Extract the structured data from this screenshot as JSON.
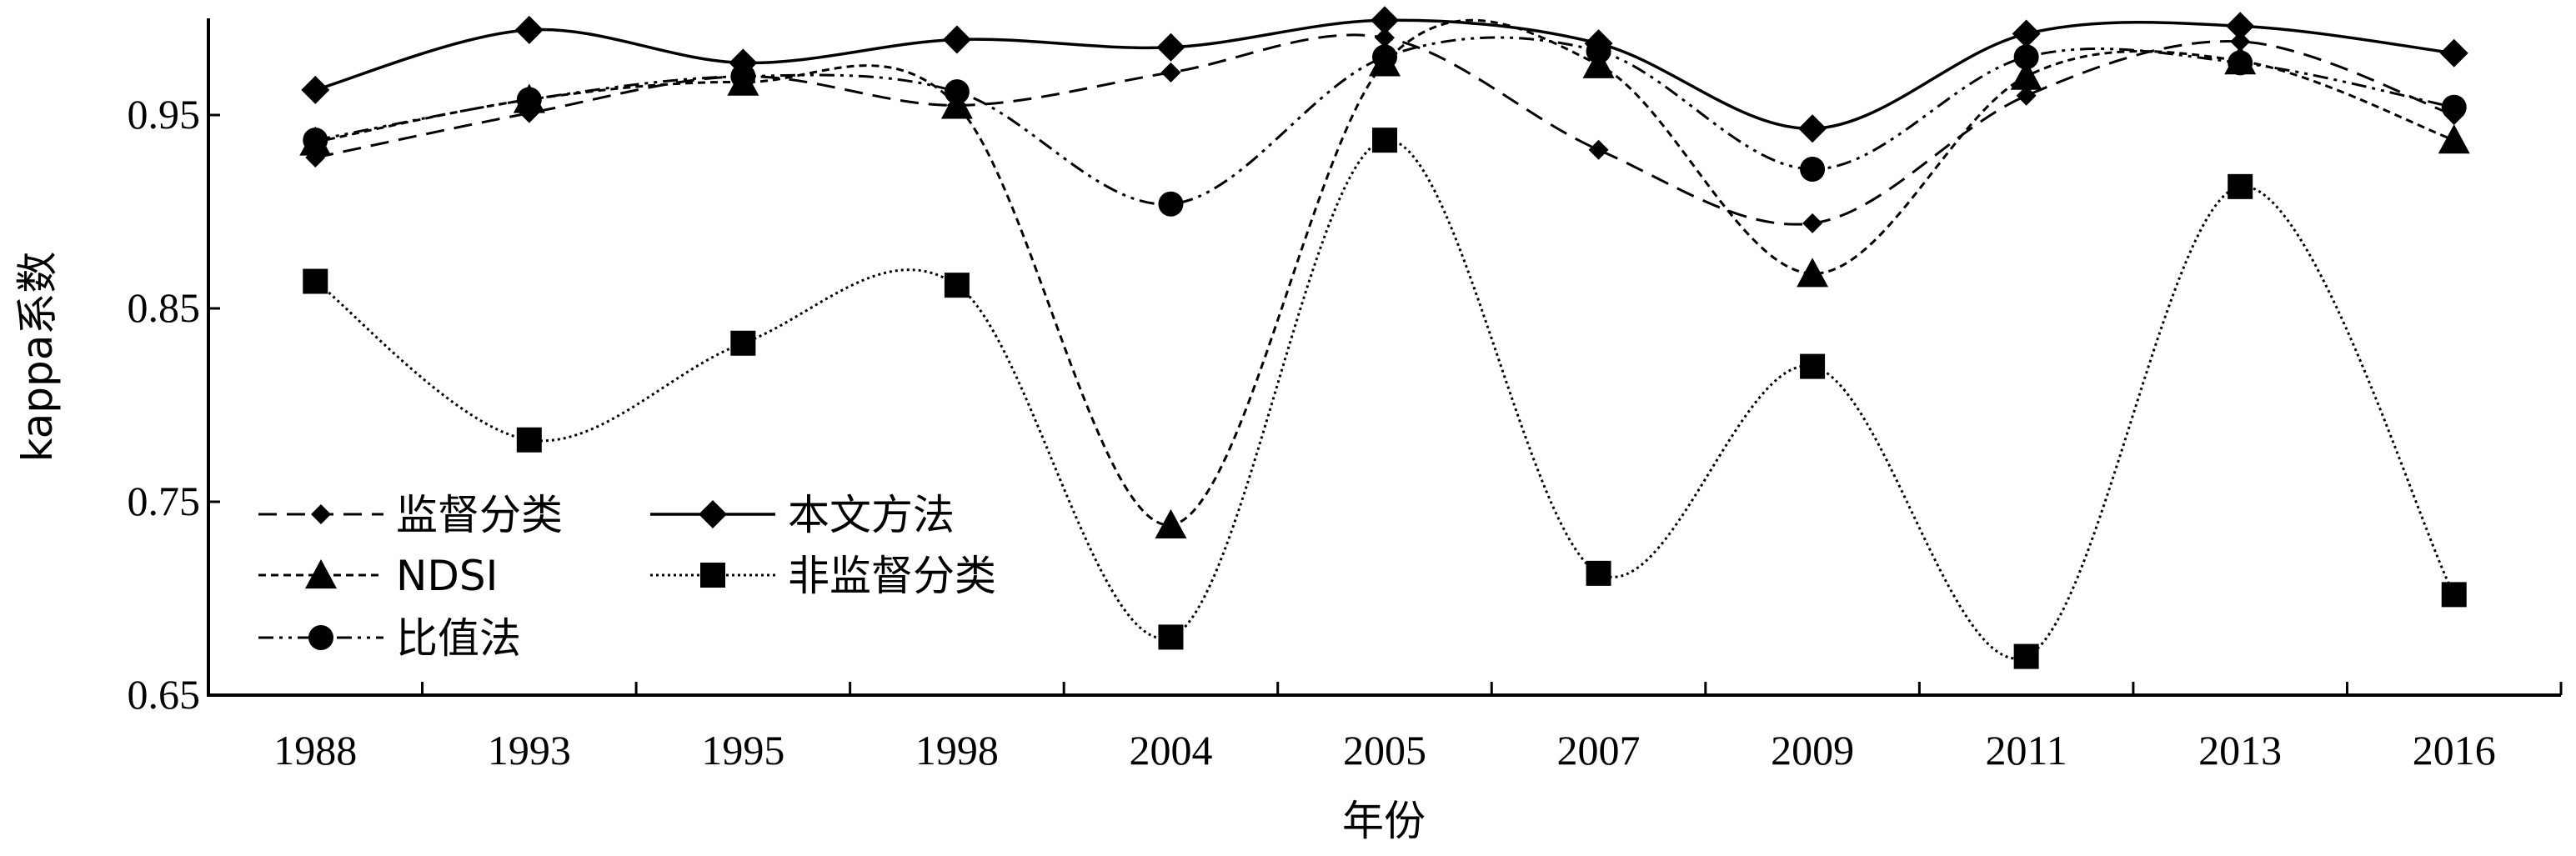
{
  "chart_data": {
    "type": "line",
    "title": "",
    "xlabel": "年份",
    "ylabel": "kappa系数",
    "categories": [
      "1988",
      "1993",
      "1995",
      "1998",
      "2004",
      "2005",
      "2007",
      "2009",
      "2011",
      "2013",
      "2016"
    ],
    "ylim": [
      0.65,
      1.0
    ],
    "yticks": [
      0.65,
      0.75,
      0.85,
      0.95
    ],
    "ytick_labels": [
      "0.65",
      "0.75",
      "0.85",
      "0.95"
    ],
    "grid": false,
    "legend_position": "lower-left",
    "series": [
      {
        "name": "监督分类",
        "marker": "diamond-small",
        "dash": "dashed",
        "values": [
          0.928,
          0.951,
          0.97,
          0.955,
          0.972,
          0.99,
          0.932,
          0.894,
          0.96,
          0.988,
          0.95
        ]
      },
      {
        "name": "本文方法",
        "marker": "diamond",
        "dash": "solid",
        "values": [
          0.963,
          0.994,
          0.977,
          0.989,
          0.985,
          0.999,
          0.987,
          0.943,
          0.992,
          0.996,
          0.982
        ]
      },
      {
        "name": "NDSI",
        "marker": "triangle",
        "dash": "short-dashed",
        "values": [
          0.936,
          0.958,
          0.967,
          0.955,
          0.738,
          0.977,
          0.976,
          0.868,
          0.97,
          0.978,
          0.937
        ]
      },
      {
        "name": "非监督分类",
        "marker": "square",
        "dash": "dotted",
        "values": [
          0.864,
          0.782,
          0.832,
          0.862,
          0.68,
          0.937,
          0.713,
          0.82,
          0.67,
          0.913,
          0.702
        ]
      },
      {
        "name": "比值法",
        "marker": "circle",
        "dash": "dash-dot-dot",
        "values": [
          0.937,
          0.958,
          0.97,
          0.962,
          0.904,
          0.98,
          0.983,
          0.922,
          0.98,
          0.977,
          0.954
        ]
      }
    ]
  }
}
